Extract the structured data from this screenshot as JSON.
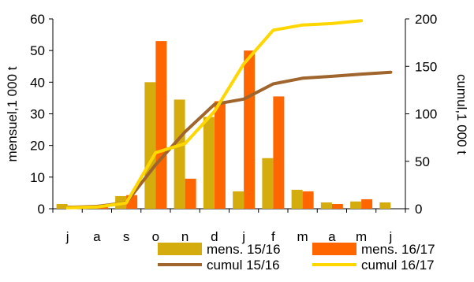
{
  "chart_data": {
    "type": "bar",
    "categories": [
      "j",
      "a",
      "s",
      "o",
      "n",
      "d",
      "j",
      "f",
      "m",
      "a",
      "m",
      "j"
    ],
    "left_axis": {
      "label": "mensuel,1 000 t",
      "range": [
        0,
        60
      ],
      "ticks": [
        0,
        10,
        20,
        30,
        40,
        50,
        60
      ]
    },
    "right_axis": {
      "label": "cumul,1 000 t",
      "range": [
        0,
        200
      ],
      "ticks": [
        0,
        50,
        100,
        150,
        200
      ]
    },
    "bar_series": [
      {
        "name": "mens. 15/16",
        "color": "#D4AC0D",
        "axis": "left",
        "values": [
          1.5,
          1.0,
          4.0,
          40.0,
          34.5,
          29.0,
          5.5,
          16.0,
          6.0,
          2.0,
          2.3,
          2.0
        ]
      },
      {
        "name": "mens. 16/17",
        "color": "#FF6600",
        "axis": "left",
        "values": [
          1.0,
          0.8,
          4.3,
          53.0,
          9.5,
          34.0,
          50.0,
          35.5,
          5.5,
          1.5,
          3.0,
          null
        ]
      }
    ],
    "line_series": [
      {
        "name": "cumul 15/16",
        "color": "#A0642D",
        "axis": "right",
        "values": [
          1.5,
          2.5,
          6.5,
          46.5,
          81.0,
          110.0,
          115.5,
          131.5,
          137.5,
          139.5,
          141.8,
          143.8
        ]
      },
      {
        "name": "cumul 16/17",
        "color": "#FFD700",
        "axis": "right",
        "values": [
          1.0,
          1.8,
          6.1,
          59.1,
          68.6,
          102.6,
          152.6,
          188.1,
          193.6,
          195.1,
          198.1,
          null
        ]
      }
    ],
    "legend_position": "bottom-right",
    "grid": false
  }
}
